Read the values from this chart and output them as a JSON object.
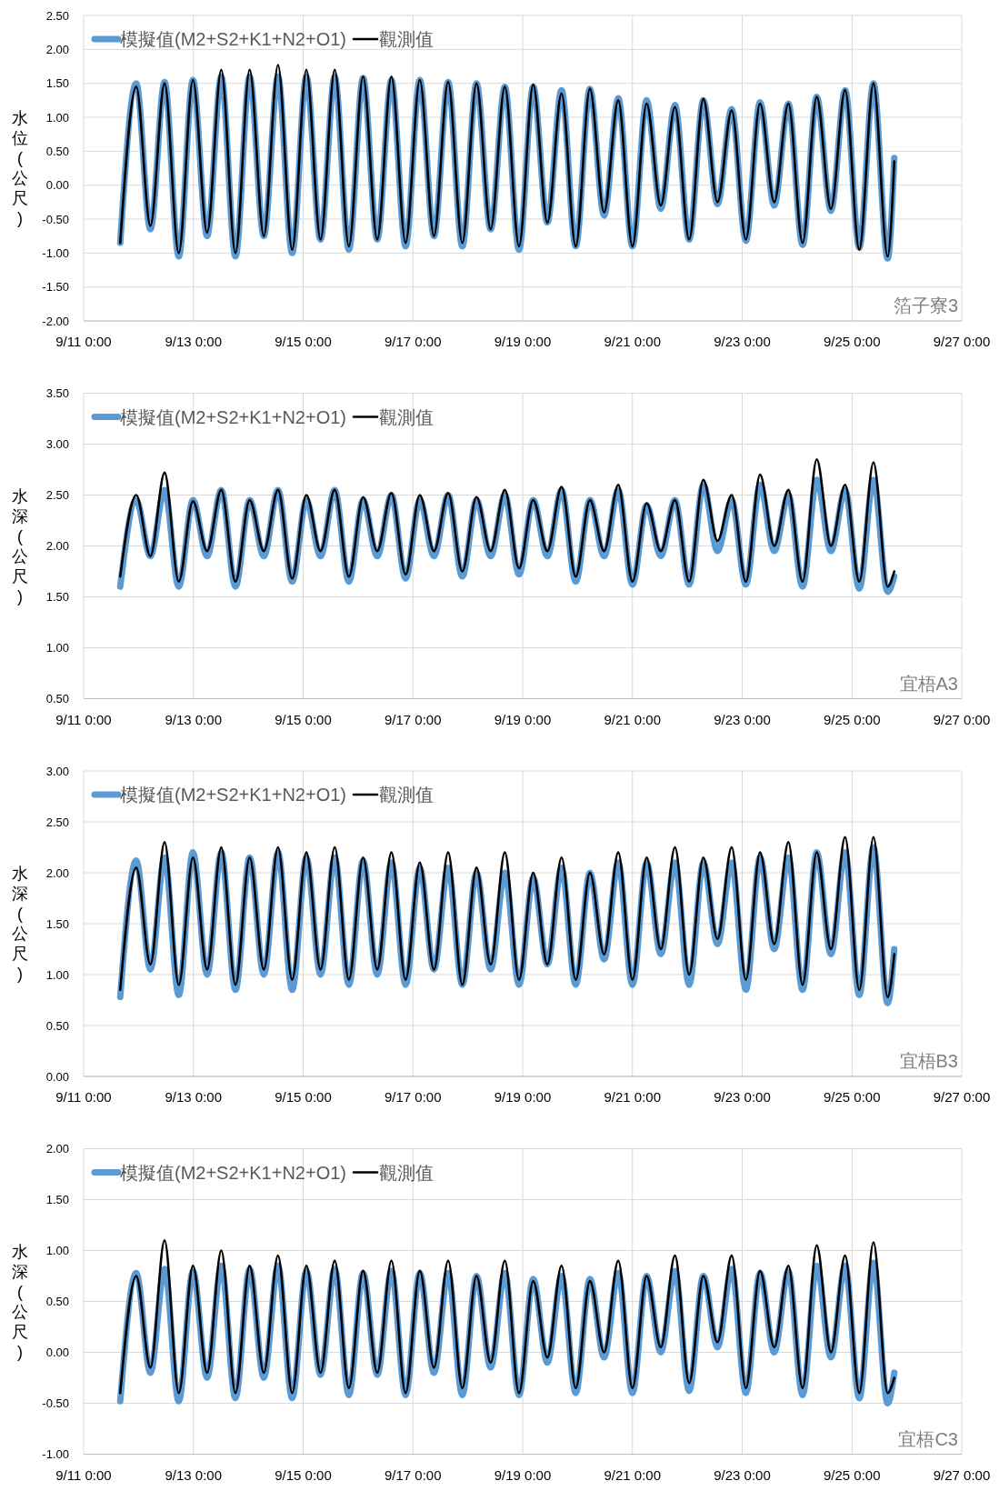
{
  "chart_data": [
    {
      "type": "line",
      "ylabel": "水位(公尺)",
      "annotations": [
        "箔子寮3"
      ],
      "grid": true,
      "legend": "top left",
      "marker": "none",
      "line_style": "solid",
      "x": [
        "--09-11T16:00",
        "--09-11T23:00",
        "--09-12T05:12",
        "--09-12T11:24",
        "--09-12T17:36",
        "--09-12T23:48",
        "--09-13T06:00",
        "--09-13T12:12",
        "--09-13T18:24",
        "--09-14T00:36",
        "--09-14T06:48",
        "--09-14T13:00",
        "--09-14T19:12",
        "--09-15T01:24",
        "--09-15T07:36",
        "--09-15T13:48",
        "--09-15T20:00",
        "--09-16T02:12",
        "--09-16T08:24",
        "--09-16T14:36",
        "--09-16T20:48",
        "--09-17T03:00",
        "--09-17T09:12",
        "--09-17T15:24",
        "--09-17T21:36",
        "--09-18T03:48",
        "--09-18T10:00",
        "--09-18T16:12",
        "--09-18T22:24",
        "--09-19T04:36",
        "--09-19T10:48",
        "--09-19T17:00",
        "--09-19T23:12",
        "--09-20T05:24",
        "--09-20T11:36",
        "--09-20T17:48",
        "--09-21T00:00",
        "--09-21T06:12",
        "--09-21T12:24",
        "--09-21T18:36",
        "--09-22T00:48",
        "--09-22T07:00",
        "--09-22T13:12",
        "--09-22T19:24",
        "--09-23T01:36",
        "--09-23T07:48",
        "--09-23T14:00",
        "--09-23T20:12",
        "--09-24T02:24",
        "--09-24T08:36",
        "--09-24T14:48",
        "--09-24T21:00",
        "--09-25T03:12",
        "--09-25T09:24",
        "--09-25T15:36",
        "--09-25T18:30"
      ],
      "xlim": [
        "--09-11T00:00",
        "--09-27T00:00"
      ],
      "xticks": [
        {
          "value": "--09-11T00:00",
          "label": "9/11 0:00"
        },
        {
          "value": "--09-13T00:00",
          "label": "9/13 0:00"
        },
        {
          "value": "--09-15T00:00",
          "label": "9/15 0:00"
        },
        {
          "value": "--09-17T00:00",
          "label": "9/17 0:00"
        },
        {
          "value": "--09-19T00:00",
          "label": "9/19 0:00"
        },
        {
          "value": "--09-21T00:00",
          "label": "9/21 0:00"
        },
        {
          "value": "--09-23T00:00",
          "label": "9/23 0:00"
        },
        {
          "value": "--09-25T00:00",
          "label": "9/25 0:00"
        },
        {
          "value": "--09-27T00:00",
          "label": "9/27 0:00"
        }
      ],
      "ylim": [
        -2,
        2.5
      ],
      "yticks": [
        {
          "value": -2,
          "label": "-2.00"
        },
        {
          "value": -1.5,
          "label": "-1.50"
        },
        {
          "value": -1,
          "label": "-1.00"
        },
        {
          "value": -0.5,
          "label": "-0.50"
        },
        {
          "value": 0,
          "label": "0.00"
        },
        {
          "value": 0.5,
          "label": "0.50"
        },
        {
          "value": 1,
          "label": "1.00"
        },
        {
          "value": 1.5,
          "label": "1.50"
        },
        {
          "value": 2,
          "label": "2.00"
        },
        {
          "value": 2.5,
          "label": "2.50"
        }
      ],
      "series": [
        {
          "name": "模擬值(M2+S2+K1+N2+O1)",
          "color": "#5b9bd5",
          "values": [
            -0.85,
            1.5,
            -0.65,
            1.52,
            -1.05,
            1.55,
            -0.75,
            1.6,
            -1.05,
            1.6,
            -0.75,
            1.6,
            -1.0,
            1.6,
            -0.8,
            1.6,
            -0.95,
            1.58,
            -0.8,
            1.55,
            -0.9,
            1.55,
            -0.75,
            1.52,
            -0.9,
            1.5,
            -0.65,
            1.45,
            -0.95,
            1.45,
            -0.55,
            1.4,
            -0.9,
            1.42,
            -0.45,
            1.28,
            -0.9,
            1.25,
            -0.35,
            1.18,
            -0.8,
            1.25,
            -0.28,
            1.12,
            -0.82,
            1.22,
            -0.3,
            1.2,
            -0.88,
            1.3,
            -0.38,
            1.4,
            -0.92,
            1.5,
            -1.08,
            0.4
          ]
        },
        {
          "name": "觀測值",
          "color": "#000000",
          "values": [
            -0.85,
            1.45,
            -0.6,
            1.5,
            -1.0,
            1.55,
            -0.7,
            1.7,
            -1.0,
            1.7,
            -0.75,
            1.77,
            -0.95,
            1.7,
            -0.8,
            1.7,
            -0.9,
            1.6,
            -0.8,
            1.6,
            -0.85,
            1.55,
            -0.75,
            1.52,
            -0.85,
            1.5,
            -0.65,
            1.45,
            -0.9,
            1.48,
            -0.55,
            1.35,
            -0.9,
            1.42,
            -0.4,
            1.25,
            -0.9,
            1.2,
            -0.3,
            1.15,
            -0.8,
            1.27,
            -0.25,
            1.1,
            -0.8,
            1.2,
            -0.25,
            1.2,
            -0.85,
            1.3,
            -0.35,
            1.4,
            -0.95,
            1.5,
            -1.05,
            0.35
          ]
        }
      ]
    },
    {
      "type": "line",
      "ylabel": "水深(公尺)",
      "annotations": [
        "宜梧A3"
      ],
      "grid": true,
      "legend": "top left",
      "marker": "none",
      "line_style": "solid",
      "x": [
        "--09-11T16:00",
        "--09-11T23:00",
        "--09-12T05:12",
        "--09-12T11:24",
        "--09-12T17:36",
        "--09-12T23:48",
        "--09-13T06:00",
        "--09-13T12:12",
        "--09-13T18:24",
        "--09-14T00:36",
        "--09-14T06:48",
        "--09-14T13:00",
        "--09-14T19:12",
        "--09-15T01:24",
        "--09-15T07:36",
        "--09-15T13:48",
        "--09-15T20:00",
        "--09-16T02:12",
        "--09-16T08:24",
        "--09-16T14:36",
        "--09-16T20:48",
        "--09-17T03:00",
        "--09-17T09:12",
        "--09-17T15:24",
        "--09-17T21:36",
        "--09-18T03:48",
        "--09-18T10:00",
        "--09-18T16:12",
        "--09-18T22:24",
        "--09-19T04:36",
        "--09-19T10:48",
        "--09-19T17:00",
        "--09-19T23:12",
        "--09-20T05:24",
        "--09-20T11:36",
        "--09-20T17:48",
        "--09-21T00:00",
        "--09-21T06:12",
        "--09-21T12:24",
        "--09-21T18:36",
        "--09-22T00:48",
        "--09-22T07:00",
        "--09-22T13:12",
        "--09-22T19:24",
        "--09-23T01:36",
        "--09-23T07:48",
        "--09-23T14:00",
        "--09-23T20:12",
        "--09-24T02:24",
        "--09-24T08:36",
        "--09-24T14:48",
        "--09-24T21:00",
        "--09-25T03:12",
        "--09-25T09:24",
        "--09-25T15:36",
        "--09-25T18:30"
      ],
      "xlim": [
        "--09-11T00:00",
        "--09-27T00:00"
      ],
      "xticks": [
        {
          "value": "--09-11T00:00",
          "label": "9/11 0:00"
        },
        {
          "value": "--09-13T00:00",
          "label": "9/13 0:00"
        },
        {
          "value": "--09-15T00:00",
          "label": "9/15 0:00"
        },
        {
          "value": "--09-17T00:00",
          "label": "9/17 0:00"
        },
        {
          "value": "--09-19T00:00",
          "label": "9/19 0:00"
        },
        {
          "value": "--09-21T00:00",
          "label": "9/21 0:00"
        },
        {
          "value": "--09-23T00:00",
          "label": "9/23 0:00"
        },
        {
          "value": "--09-25T00:00",
          "label": "9/25 0:00"
        },
        {
          "value": "--09-27T00:00",
          "label": "9/27 0:00"
        }
      ],
      "ylim": [
        0.5,
        3.5
      ],
      "yticks": [
        {
          "value": 0.5,
          "label": "0.50"
        },
        {
          "value": 1,
          "label": "1.00"
        },
        {
          "value": 1.5,
          "label": "1.50"
        },
        {
          "value": 2,
          "label": "2.00"
        },
        {
          "value": 2.5,
          "label": "2.50"
        },
        {
          "value": 3,
          "label": "3.00"
        },
        {
          "value": 3.5,
          "label": "3.50"
        }
      ],
      "series": [
        {
          "name": "模擬值(M2+S2+K1+N2+O1)",
          "color": "#5b9bd5",
          "values": [
            1.6,
            2.45,
            1.9,
            2.55,
            1.6,
            2.45,
            1.9,
            2.55,
            1.6,
            2.45,
            1.9,
            2.55,
            1.65,
            2.45,
            1.9,
            2.55,
            1.65,
            2.45,
            1.9,
            2.5,
            1.68,
            2.45,
            1.9,
            2.5,
            1.7,
            2.45,
            1.9,
            2.5,
            1.72,
            2.45,
            1.9,
            2.55,
            1.65,
            2.45,
            1.9,
            2.55,
            1.62,
            2.4,
            1.9,
            2.45,
            1.62,
            2.6,
            1.95,
            2.45,
            1.62,
            2.6,
            1.95,
            2.5,
            1.6,
            2.65,
            1.95,
            2.55,
            1.58,
            2.65,
            1.55,
            1.7
          ]
        },
        {
          "name": "觀測值",
          "color": "#000000",
          "values": [
            1.7,
            2.5,
            1.9,
            2.72,
            1.65,
            2.44,
            1.95,
            2.55,
            1.65,
            2.45,
            1.95,
            2.55,
            1.68,
            2.5,
            1.95,
            2.55,
            1.7,
            2.48,
            1.95,
            2.52,
            1.72,
            2.5,
            1.95,
            2.52,
            1.75,
            2.48,
            1.95,
            2.55,
            1.78,
            2.45,
            1.95,
            2.58,
            1.7,
            2.45,
            1.95,
            2.6,
            1.65,
            2.42,
            1.95,
            2.45,
            1.65,
            2.65,
            2.05,
            2.5,
            1.65,
            2.7,
            2.0,
            2.55,
            1.65,
            2.85,
            2.0,
            2.6,
            1.65,
            2.82,
            1.6,
            1.75
          ]
        }
      ]
    },
    {
      "type": "line",
      "ylabel": "水深(公尺)",
      "annotations": [
        "宜梧B3"
      ],
      "grid": true,
      "legend": "top left",
      "marker": "none",
      "line_style": "solid",
      "x": [
        "--09-11T16:00",
        "--09-11T23:00",
        "--09-12T05:12",
        "--09-12T11:24",
        "--09-12T17:36",
        "--09-12T23:48",
        "--09-13T06:00",
        "--09-13T12:12",
        "--09-13T18:24",
        "--09-14T00:36",
        "--09-14T06:48",
        "--09-14T13:00",
        "--09-14T19:12",
        "--09-15T01:24",
        "--09-15T07:36",
        "--09-15T13:48",
        "--09-15T20:00",
        "--09-16T02:12",
        "--09-16T08:24",
        "--09-16T14:36",
        "--09-16T20:48",
        "--09-17T03:00",
        "--09-17T09:12",
        "--09-17T15:24",
        "--09-17T21:36",
        "--09-18T03:48",
        "--09-18T10:00",
        "--09-18T16:12",
        "--09-18T22:24",
        "--09-19T04:36",
        "--09-19T10:48",
        "--09-19T17:00",
        "--09-19T23:12",
        "--09-20T05:24",
        "--09-20T11:36",
        "--09-20T17:48",
        "--09-21T00:00",
        "--09-21T06:12",
        "--09-21T12:24",
        "--09-21T18:36",
        "--09-22T00:48",
        "--09-22T07:00",
        "--09-22T13:12",
        "--09-22T19:24",
        "--09-23T01:36",
        "--09-23T07:48",
        "--09-23T14:00",
        "--09-23T20:12",
        "--09-24T02:24",
        "--09-24T08:36",
        "--09-24T14:48",
        "--09-24T21:00",
        "--09-25T03:12",
        "--09-25T09:24",
        "--09-25T15:36",
        "--09-25T18:30"
      ],
      "xlim": [
        "--09-11T00:00",
        "--09-27T00:00"
      ],
      "xticks": [
        {
          "value": "--09-11T00:00",
          "label": "9/11 0:00"
        },
        {
          "value": "--09-13T00:00",
          "label": "9/13 0:00"
        },
        {
          "value": "--09-15T00:00",
          "label": "9/15 0:00"
        },
        {
          "value": "--09-17T00:00",
          "label": "9/17 0:00"
        },
        {
          "value": "--09-19T00:00",
          "label": "9/19 0:00"
        },
        {
          "value": "--09-21T00:00",
          "label": "9/21 0:00"
        },
        {
          "value": "--09-23T00:00",
          "label": "9/23 0:00"
        },
        {
          "value": "--09-25T00:00",
          "label": "9/25 0:00"
        },
        {
          "value": "--09-27T00:00",
          "label": "9/27 0:00"
        }
      ],
      "ylim": [
        0,
        3
      ],
      "yticks": [
        {
          "value": 0,
          "label": "0.00"
        },
        {
          "value": 0.5,
          "label": "0.50"
        },
        {
          "value": 1,
          "label": "1.00"
        },
        {
          "value": 1.5,
          "label": "1.50"
        },
        {
          "value": 2,
          "label": "2.00"
        },
        {
          "value": 2.5,
          "label": "2.50"
        },
        {
          "value": 3,
          "label": "3.00"
        }
      ],
      "series": [
        {
          "name": "模擬值(M2+S2+K1+N2+O1)",
          "color": "#5b9bd5",
          "values": [
            0.78,
            2.12,
            1.05,
            2.15,
            0.8,
            2.2,
            1.0,
            2.2,
            0.85,
            2.15,
            1.0,
            2.2,
            0.85,
            2.15,
            1.0,
            2.15,
            0.9,
            2.12,
            1.0,
            2.1,
            0.9,
            2.05,
            1.05,
            2.05,
            0.9,
            2.0,
            1.05,
            2.0,
            0.9,
            1.95,
            1.1,
            2.05,
            0.9,
            2.0,
            1.15,
            2.1,
            0.9,
            2.1,
            1.2,
            2.1,
            0.9,
            2.1,
            1.3,
            2.1,
            0.85,
            2.15,
            1.25,
            2.15,
            0.85,
            2.2,
            1.2,
            2.2,
            0.8,
            2.25,
            0.72,
            1.25
          ]
        },
        {
          "name": "觀測值",
          "color": "#000000",
          "values": [
            0.85,
            2.05,
            1.1,
            2.3,
            0.9,
            2.15,
            1.05,
            2.25,
            0.9,
            2.15,
            1.05,
            2.25,
            0.95,
            2.2,
            1.05,
            2.25,
            0.95,
            2.15,
            1.05,
            2.2,
            0.95,
            2.1,
            1.05,
            2.2,
            0.9,
            2.05,
            1.1,
            2.2,
            0.95,
            2.0,
            1.1,
            2.15,
            0.95,
            2.0,
            1.2,
            2.2,
            0.95,
            2.15,
            1.25,
            2.25,
            1.0,
            2.15,
            1.35,
            2.25,
            0.95,
            2.2,
            1.3,
            2.3,
            0.9,
            2.2,
            1.25,
            2.35,
            0.85,
            2.35,
            0.78,
            1.2
          ]
        }
      ]
    },
    {
      "type": "line",
      "ylabel": "水深(公尺)",
      "annotations": [
        "宜梧C3"
      ],
      "grid": true,
      "legend": "top left",
      "marker": "none",
      "line_style": "solid",
      "x": [
        "--09-11T16:00",
        "--09-11T23:00",
        "--09-12T05:12",
        "--09-12T11:24",
        "--09-12T17:36",
        "--09-12T23:48",
        "--09-13T06:00",
        "--09-13T12:12",
        "--09-13T18:24",
        "--09-14T00:36",
        "--09-14T06:48",
        "--09-14T13:00",
        "--09-14T19:12",
        "--09-15T01:24",
        "--09-15T07:36",
        "--09-15T13:48",
        "--09-15T20:00",
        "--09-16T02:12",
        "--09-16T08:24",
        "--09-16T14:36",
        "--09-16T20:48",
        "--09-17T03:00",
        "--09-17T09:12",
        "--09-17T15:24",
        "--09-17T21:36",
        "--09-18T03:48",
        "--09-18T10:00",
        "--09-18T16:12",
        "--09-18T22:24",
        "--09-19T04:36",
        "--09-19T10:48",
        "--09-19T17:00",
        "--09-19T23:12",
        "--09-20T05:24",
        "--09-20T11:36",
        "--09-20T17:48",
        "--09-21T00:00",
        "--09-21T06:12",
        "--09-21T12:24",
        "--09-21T18:36",
        "--09-22T00:48",
        "--09-22T07:00",
        "--09-22T13:12",
        "--09-22T19:24",
        "--09-23T01:36",
        "--09-23T07:48",
        "--09-23T14:00",
        "--09-23T20:12",
        "--09-24T02:24",
        "--09-24T08:36",
        "--09-24T14:48",
        "--09-24T21:00",
        "--09-25T03:12",
        "--09-25T09:24",
        "--09-25T15:36",
        "--09-25T18:30"
      ],
      "xlim": [
        "--09-11T00:00",
        "--09-27T00:00"
      ],
      "xticks": [
        {
          "value": "--09-11T00:00",
          "label": "9/11 0:00"
        },
        {
          "value": "--09-13T00:00",
          "label": "9/13 0:00"
        },
        {
          "value": "--09-15T00:00",
          "label": "9/15 0:00"
        },
        {
          "value": "--09-17T00:00",
          "label": "9/17 0:00"
        },
        {
          "value": "--09-19T00:00",
          "label": "9/19 0:00"
        },
        {
          "value": "--09-21T00:00",
          "label": "9/21 0:00"
        },
        {
          "value": "--09-23T00:00",
          "label": "9/23 0:00"
        },
        {
          "value": "--09-25T00:00",
          "label": "9/25 0:00"
        },
        {
          "value": "--09-27T00:00",
          "label": "9/27 0:00"
        }
      ],
      "ylim": [
        -1,
        2
      ],
      "yticks": [
        {
          "value": -1,
          "label": "-1.00"
        },
        {
          "value": -0.5,
          "label": "-0.50"
        },
        {
          "value": 0,
          "label": "0.00"
        },
        {
          "value": 0.5,
          "label": "0.50"
        },
        {
          "value": 1,
          "label": "1.00"
        },
        {
          "value": 1.5,
          "label": "1.50"
        },
        {
          "value": 2,
          "label": "2.00"
        }
      ],
      "series": [
        {
          "name": "模擬值(M2+S2+K1+N2+O1)",
          "color": "#5b9bd5",
          "values": [
            -0.48,
            0.78,
            -0.2,
            0.82,
            -0.48,
            0.8,
            -0.25,
            0.85,
            -0.45,
            0.82,
            -0.25,
            0.85,
            -0.45,
            0.8,
            -0.22,
            0.82,
            -0.42,
            0.78,
            -0.22,
            0.8,
            -0.42,
            0.78,
            -0.2,
            0.78,
            -0.42,
            0.75,
            -0.15,
            0.78,
            -0.42,
            0.72,
            -0.1,
            0.75,
            -0.4,
            0.72,
            -0.05,
            0.78,
            -0.4,
            0.75,
            0.0,
            0.8,
            -0.38,
            0.75,
            0.05,
            0.82,
            -0.4,
            0.78,
            0.0,
            0.8,
            -0.42,
            0.85,
            -0.05,
            0.85,
            -0.45,
            0.88,
            -0.5,
            -0.2
          ]
        },
        {
          "name": "觀測值",
          "color": "#000000",
          "values": [
            -0.4,
            0.75,
            -0.15,
            1.1,
            -0.4,
            0.85,
            -0.2,
            1.0,
            -0.4,
            0.85,
            -0.2,
            0.95,
            -0.4,
            0.85,
            -0.2,
            0.9,
            -0.35,
            0.8,
            -0.2,
            0.9,
            -0.4,
            0.8,
            -0.15,
            0.9,
            -0.35,
            0.75,
            -0.1,
            0.9,
            -0.4,
            0.7,
            -0.05,
            0.85,
            -0.35,
            0.7,
            0.0,
            0.9,
            -0.35,
            0.75,
            0.05,
            0.95,
            -0.3,
            0.75,
            0.1,
            0.95,
            -0.35,
            0.8,
            0.05,
            0.85,
            -0.35,
            1.05,
            0.0,
            0.95,
            -0.4,
            1.08,
            -0.4,
            -0.25
          ]
        }
      ]
    }
  ]
}
